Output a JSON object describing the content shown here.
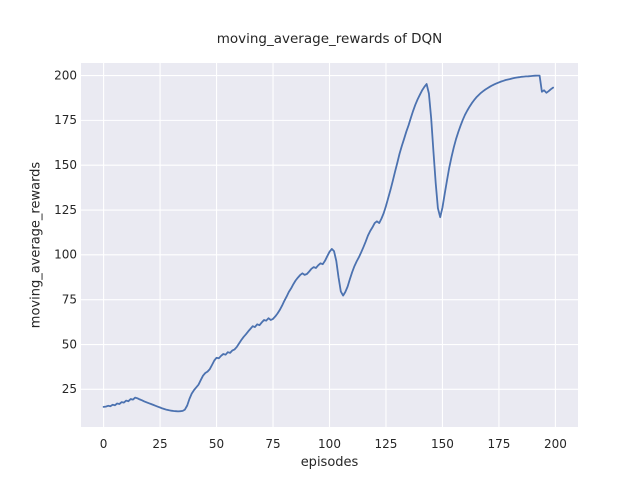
{
  "figure": {
    "background": "#ffffff"
  },
  "chart_data": {
    "type": "line",
    "title": "moving_average_rewards of DQN",
    "xlabel": "episodes",
    "ylabel": "moving_average_rewards",
    "xlim": [
      -10,
      210
    ],
    "ylim": [
      4,
      207
    ],
    "x_ticks": [
      0,
      25,
      50,
      75,
      100,
      125,
      150,
      175,
      200
    ],
    "y_ticks": [
      25,
      50,
      75,
      100,
      125,
      150,
      175,
      200
    ],
    "grid": true,
    "legend": "none",
    "style": {
      "axes_background": "#eaeaf2",
      "grid_color": "#ffffff",
      "line_color": "#4c72b0",
      "text_color": "#262626",
      "line_width": 1.8
    },
    "series": [
      {
        "name": "moving_average_rewards",
        "points": [
          [
            0,
            15.2
          ],
          [
            1,
            15.4
          ],
          [
            2,
            15.8
          ],
          [
            3,
            15.6
          ],
          [
            4,
            16.4
          ],
          [
            5,
            16.1
          ],
          [
            6,
            17.1
          ],
          [
            7,
            16.8
          ],
          [
            8,
            17.9
          ],
          [
            9,
            17.6
          ],
          [
            10,
            18.7
          ],
          [
            11,
            18.4
          ],
          [
            12,
            19.6
          ],
          [
            13,
            19.3
          ],
          [
            14,
            20.4
          ],
          [
            15,
            20.0
          ],
          [
            16,
            19.4
          ],
          [
            17,
            18.9
          ],
          [
            18,
            18.3
          ],
          [
            19,
            17.8
          ],
          [
            20,
            17.3
          ],
          [
            21,
            16.8
          ],
          [
            22,
            16.3
          ],
          [
            23,
            15.8
          ],
          [
            24,
            15.3
          ],
          [
            25,
            14.9
          ],
          [
            26,
            14.4
          ],
          [
            27,
            14.0
          ],
          [
            28,
            13.6
          ],
          [
            29,
            13.3
          ],
          [
            30,
            13.1
          ],
          [
            31,
            12.9
          ],
          [
            32,
            12.8
          ],
          [
            33,
            12.7
          ],
          [
            34,
            12.8
          ],
          [
            35,
            13.0
          ],
          [
            36,
            13.7
          ],
          [
            37,
            16.0
          ],
          [
            38,
            19.6
          ],
          [
            39,
            22.6
          ],
          [
            40,
            24.6
          ],
          [
            41,
            26.1
          ],
          [
            42,
            27.6
          ],
          [
            43,
            30.1
          ],
          [
            44,
            32.6
          ],
          [
            45,
            34.1
          ],
          [
            46,
            34.9
          ],
          [
            47,
            36.3
          ],
          [
            48,
            38.6
          ],
          [
            49,
            41.1
          ],
          [
            50,
            42.6
          ],
          [
            51,
            42.3
          ],
          [
            52,
            43.7
          ],
          [
            53,
            44.7
          ],
          [
            54,
            44.3
          ],
          [
            55,
            45.7
          ],
          [
            56,
            45.3
          ],
          [
            57,
            46.7
          ],
          [
            58,
            47.3
          ],
          [
            59,
            48.7
          ],
          [
            60,
            50.6
          ],
          [
            61,
            52.6
          ],
          [
            62,
            54.3
          ],
          [
            63,
            55.7
          ],
          [
            64,
            57.3
          ],
          [
            65,
            58.7
          ],
          [
            66,
            60.2
          ],
          [
            67,
            59.7
          ],
          [
            68,
            61.3
          ],
          [
            69,
            60.8
          ],
          [
            70,
            62.3
          ],
          [
            71,
            63.7
          ],
          [
            72,
            63.3
          ],
          [
            73,
            64.7
          ],
          [
            74,
            63.7
          ],
          [
            75,
            64.3
          ],
          [
            76,
            65.7
          ],
          [
            77,
            67.3
          ],
          [
            78,
            69.3
          ],
          [
            79,
            71.7
          ],
          [
            80,
            74.3
          ],
          [
            81,
            76.7
          ],
          [
            82,
            79.3
          ],
          [
            83,
            81.3
          ],
          [
            84,
            83.7
          ],
          [
            85,
            85.7
          ],
          [
            86,
            87.3
          ],
          [
            87,
            88.7
          ],
          [
            88,
            89.7
          ],
          [
            89,
            88.8
          ],
          [
            90,
            89.3
          ],
          [
            91,
            90.7
          ],
          [
            92,
            92.2
          ],
          [
            93,
            93.2
          ],
          [
            94,
            92.7
          ],
          [
            95,
            94.2
          ],
          [
            96,
            95.3
          ],
          [
            97,
            94.8
          ],
          [
            98,
            96.7
          ],
          [
            99,
            99.2
          ],
          [
            100,
            101.7
          ],
          [
            101,
            103.3
          ],
          [
            102,
            102.1
          ],
          [
            103,
            96.6
          ],
          [
            104,
            87.6
          ],
          [
            105,
            79.6
          ],
          [
            106,
            77.3
          ],
          [
            107,
            79.3
          ],
          [
            108,
            82.3
          ],
          [
            109,
            86.3
          ],
          [
            110,
            90.3
          ],
          [
            111,
            93.7
          ],
          [
            112,
            96.3
          ],
          [
            113,
            98.7
          ],
          [
            114,
            101.3
          ],
          [
            115,
            104.3
          ],
          [
            116,
            107.3
          ],
          [
            117,
            110.7
          ],
          [
            118,
            113.3
          ],
          [
            119,
            115.3
          ],
          [
            120,
            117.7
          ],
          [
            121,
            118.7
          ],
          [
            122,
            117.7
          ],
          [
            123,
            120.3
          ],
          [
            124,
            123.3
          ],
          [
            125,
            127.3
          ],
          [
            126,
            131.7
          ],
          [
            127,
            136.3
          ],
          [
            128,
            141.3
          ],
          [
            129,
            146.3
          ],
          [
            130,
            151.3
          ],
          [
            131,
            156.3
          ],
          [
            132,
            160.7
          ],
          [
            133,
            164.7
          ],
          [
            134,
            168.7
          ],
          [
            135,
            172.3
          ],
          [
            136,
            176.3
          ],
          [
            137,
            180.3
          ],
          [
            138,
            183.7
          ],
          [
            139,
            186.7
          ],
          [
            140,
            189.3
          ],
          [
            141,
            191.7
          ],
          [
            142,
            193.7
          ],
          [
            143,
            195.3
          ],
          [
            144,
            190.0
          ],
          [
            145,
            176.0
          ],
          [
            146,
            158.0
          ],
          [
            147,
            140.0
          ],
          [
            148,
            126.0
          ],
          [
            149,
            121.0
          ],
          [
            150,
            126.5
          ],
          [
            151,
            134.0
          ],
          [
            152,
            141.5
          ],
          [
            153,
            148.5
          ],
          [
            154,
            154.5
          ],
          [
            155,
            160.0
          ],
          [
            156,
            164.5
          ],
          [
            157,
            168.5
          ],
          [
            158,
            172.0
          ],
          [
            159,
            175.3
          ],
          [
            160,
            178.1
          ],
          [
            161,
            180.5
          ],
          [
            162,
            182.7
          ],
          [
            163,
            184.6
          ],
          [
            164,
            186.3
          ],
          [
            165,
            187.8
          ],
          [
            166,
            189.1
          ],
          [
            167,
            190.3
          ],
          [
            168,
            191.3
          ],
          [
            169,
            192.2
          ],
          [
            170,
            193.0
          ],
          [
            171,
            193.8
          ],
          [
            172,
            194.5
          ],
          [
            173,
            195.1
          ],
          [
            174,
            195.7
          ],
          [
            175,
            196.2
          ],
          [
            176,
            196.7
          ],
          [
            177,
            197.1
          ],
          [
            178,
            197.5
          ],
          [
            179,
            197.8
          ],
          [
            180,
            198.1
          ],
          [
            181,
            198.4
          ],
          [
            182,
            198.7
          ],
          [
            183,
            198.9
          ],
          [
            184,
            199.1
          ],
          [
            185,
            199.3
          ],
          [
            186,
            199.4
          ],
          [
            187,
            199.5
          ],
          [
            188,
            199.6
          ],
          [
            189,
            199.7
          ],
          [
            190,
            199.8
          ],
          [
            191,
            199.9
          ],
          [
            192,
            200.0
          ],
          [
            193,
            200.0
          ],
          [
            194,
            191.0
          ],
          [
            195,
            191.8
          ],
          [
            196,
            190.4
          ],
          [
            197,
            191.3
          ],
          [
            198,
            192.4
          ],
          [
            199,
            193.3
          ]
        ]
      }
    ]
  }
}
